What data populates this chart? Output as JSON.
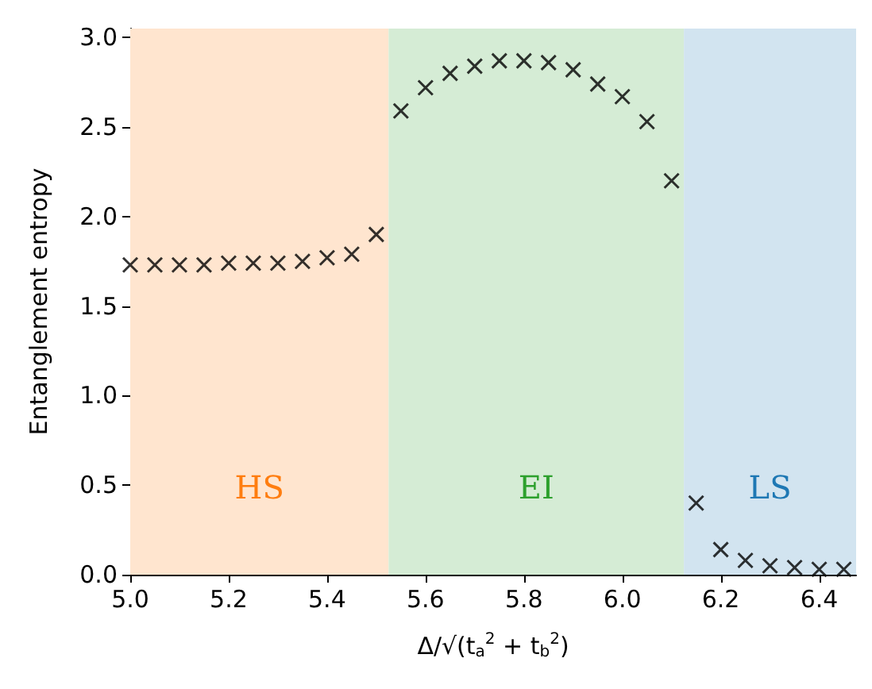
{
  "chart_data": {
    "type": "scatter",
    "xlabel": "Δ/√(t$_{a}$$^{2}$ + t$_{b}$$^{2}$)",
    "ylabel": "Entanglement entropy",
    "x": [
      5.0,
      5.05,
      5.1,
      5.15,
      5.2,
      5.25,
      5.3,
      5.35,
      5.4,
      5.45,
      5.5,
      5.55,
      5.6,
      5.65,
      5.7,
      5.75,
      5.8,
      5.85,
      5.9,
      5.95,
      6.0,
      6.05,
      6.1,
      6.15,
      6.2,
      6.25,
      6.3,
      6.35,
      6.4,
      6.45
    ],
    "series": [
      {
        "color": "#000000",
        "values": [
          1.73,
          1.73,
          1.73,
          1.73,
          1.74,
          1.74,
          1.74,
          1.75,
          1.77,
          1.79,
          1.9,
          2.59,
          2.72,
          2.8,
          2.84,
          2.87,
          2.87,
          2.86,
          2.82,
          2.74,
          2.67,
          2.53,
          2.2,
          0.4,
          0.14,
          0.08,
          0.05,
          0.04,
          0.03,
          0.03
        ]
      }
    ],
    "xlim": [
      5.0,
      6.475
    ],
    "xticks": [
      {
        "value": 5,
        "label": "5.0"
      },
      5.2,
      5.4,
      5.6,
      5.8,
      {
        "value": 6,
        "label": "6.0"
      },
      6.2,
      6.4
    ],
    "ylim": [
      0,
      3.05
    ],
    "yticks": [
      {
        "value": 0,
        "label": "0.0"
      },
      0.5,
      {
        "value": 1,
        "label": "1.0"
      },
      1.5,
      {
        "value": 2,
        "label": "2.0"
      },
      2.5,
      {
        "value": 3,
        "label": "3.0"
      }
    ],
    "bands": [
      {
        "axis": "x",
        "from": 5.0,
        "to": 5.525,
        "label": "HS",
        "color": "#ffe5cf"
      },
      {
        "axis": "x",
        "from": 5.525,
        "to": 6.125,
        "label": "EI",
        "color": "#d5ecd5"
      },
      {
        "axis": "x",
        "from": 6.125,
        "to": 6.475,
        "label": "LS",
        "color": "#d2e4f0"
      }
    ],
    "marker": "cross",
    "grid": false
  }
}
